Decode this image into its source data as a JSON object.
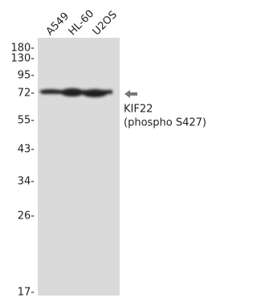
{
  "lanes": [
    "A549",
    "HL-60",
    "U2OS"
  ],
  "markers": [
    "180-",
    "130-",
    "95-",
    "72-",
    "55-",
    "43-",
    "34-",
    "26-",
    "17-"
  ],
  "band_label": [
    "KIF22",
    "(phospho S427)"
  ]
}
